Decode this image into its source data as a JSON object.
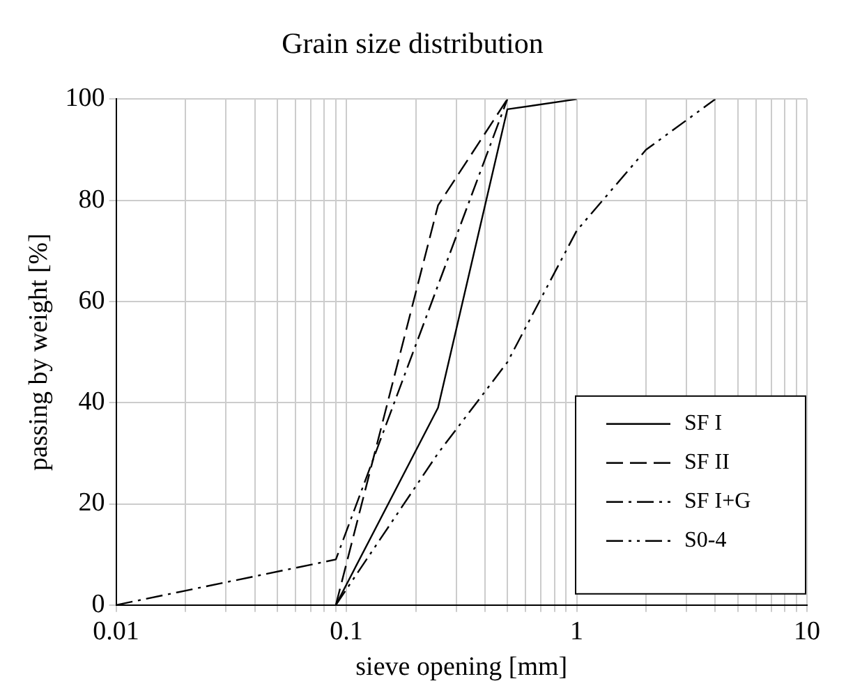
{
  "chart_data": {
    "type": "line",
    "title": "Grain size distribution",
    "xlabel": "sieve opening [mm]",
    "ylabel": "passing by weight [%]",
    "log": "x",
    "xlim": [
      0.01,
      10
    ],
    "ylim": [
      0,
      100
    ],
    "xticks": [
      0.01,
      {
        "value": 0.02,
        "label": null
      },
      {
        "value": 0.03,
        "label": null
      },
      {
        "value": 0.04,
        "label": null
      },
      {
        "value": 0.05,
        "label": null
      },
      {
        "value": 0.06,
        "label": null
      },
      {
        "value": 0.07,
        "label": null
      },
      {
        "value": 0.08,
        "label": null
      },
      {
        "value": 0.09,
        "label": null
      },
      0.1,
      {
        "value": 0.2,
        "label": null
      },
      {
        "value": 0.3,
        "label": null
      },
      {
        "value": 0.4,
        "label": null
      },
      {
        "value": 0.5,
        "label": null
      },
      {
        "value": 0.6,
        "label": null
      },
      {
        "value": 0.7,
        "label": null
      },
      {
        "value": 0.8,
        "label": null
      },
      {
        "value": 0.9,
        "label": null
      },
      1,
      {
        "value": 2,
        "label": null
      },
      {
        "value": 3,
        "label": null
      },
      {
        "value": 4,
        "label": null
      },
      {
        "value": 5,
        "label": null
      },
      {
        "value": 6,
        "label": null
      },
      {
        "value": 7,
        "label": null
      },
      {
        "value": 8,
        "label": null
      },
      {
        "value": 9,
        "label": null
      },
      10
    ],
    "yticks": [
      0,
      20,
      40,
      60,
      80,
      100
    ],
    "grid": true,
    "legend": "bottom right",
    "marker": "none",
    "series": [
      {
        "name": "SF I",
        "color": "#000000",
        "line_style": "solid",
        "x": [
          0.09,
          0.25,
          0.5,
          1
        ],
        "values": [
          0,
          39,
          98,
          100
        ]
      },
      {
        "name": "SF II",
        "color": "#000000",
        "line_style": "dashed",
        "x": [
          0.09,
          0.25,
          0.5
        ],
        "values": [
          0,
          79,
          100
        ]
      },
      {
        "name": "SF I+G",
        "color": "#000000",
        "line_style": "dashdot",
        "x": [
          0.01,
          0.09,
          0.5
        ],
        "values": [
          0,
          9,
          100
        ]
      },
      {
        "name": "S0-4",
        "color": "#000000",
        "line_style": "dashdotdot",
        "x": [
          0.09,
          0.25,
          0.5,
          1,
          2,
          4
        ],
        "values": [
          0,
          30,
          48,
          74,
          90,
          100
        ]
      }
    ]
  }
}
